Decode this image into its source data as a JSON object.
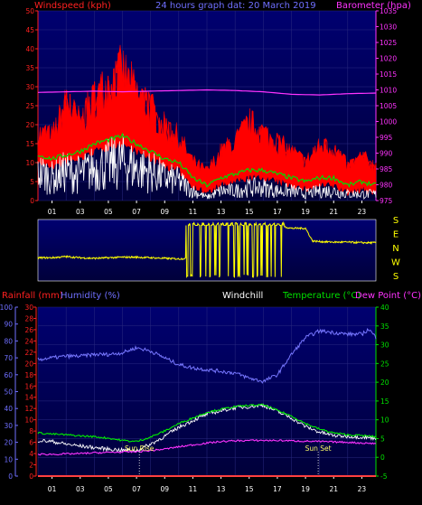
{
  "colors": {
    "background": "#000000",
    "plot_bg_top": "#000066",
    "plot_bg_bottom": "#00003f",
    "axis_red": "#ff2020",
    "axis_pink": "#ff33ff",
    "axis_blue": "#6f6fff",
    "axis_green": "#00e000",
    "axis_yellow": "#ffff00",
    "grid": "#2a2a80",
    "white": "#ffffff"
  },
  "chart_data": [
    {
      "id": "wind-barometer",
      "type": "line",
      "title": "24 hours graph dat: 20 March 2019",
      "left_axis_label": "Windspeed (kph)",
      "right_axis_label": "Barometer (hpa)",
      "left_ticks": [
        "50",
        "45",
        "40",
        "35",
        "30",
        "25",
        "20",
        "15",
        "10",
        "5",
        "0"
      ],
      "right_ticks": [
        "1035",
        "1030",
        "1025",
        "1020",
        "1015",
        "1010",
        "1005",
        "1000",
        "995",
        "990",
        "985",
        "980",
        "975"
      ],
      "x_ticks": [
        "01",
        "03",
        "05",
        "07",
        "09",
        "11",
        "13",
        "15",
        "17",
        "19",
        "21",
        "23"
      ],
      "ylim_left": [
        0,
        50
      ],
      "ylim_right": [
        975,
        1035
      ],
      "x_range_hours": [
        0,
        24
      ],
      "series": [
        {
          "id": "barometer",
          "color": "#ff33ff",
          "axis": "right",
          "x": [
            0,
            2,
            4,
            6,
            8,
            10,
            12,
            14,
            16,
            18,
            20,
            22,
            24
          ],
          "y": [
            1009.2,
            1009.4,
            1009.6,
            1009.4,
            1009.6,
            1009.8,
            1010.0,
            1009.8,
            1009.4,
            1008.6,
            1008.4,
            1008.8,
            1009.0
          ]
        },
        {
          "id": "gust",
          "color": "#ff0000",
          "axis": "left",
          "x": [
            0,
            1,
            2,
            3,
            4,
            5,
            6,
            7,
            8,
            9,
            10,
            11,
            12,
            13,
            14,
            15,
            16,
            17,
            18,
            19,
            20,
            21,
            22,
            23,
            24
          ],
          "y": [
            14,
            13,
            20,
            16,
            21,
            24,
            27,
            22,
            19,
            15,
            13,
            8,
            6,
            10,
            12,
            16,
            14,
            12,
            10,
            8,
            11,
            11,
            7,
            9,
            7
          ]
        },
        {
          "id": "average",
          "color": "#00dd00",
          "axis": "left",
          "x": [
            0,
            1,
            2,
            3,
            4,
            5,
            6,
            7,
            8,
            9,
            10,
            11,
            12,
            13,
            14,
            15,
            16,
            17,
            18,
            19,
            20,
            21,
            22,
            23,
            24
          ],
          "y": [
            12,
            11,
            12,
            13,
            15,
            16,
            17,
            15,
            13,
            11,
            10,
            6,
            4,
            6,
            7,
            8,
            8,
            7,
            6,
            5,
            6,
            6,
            4,
            5,
            4
          ]
        },
        {
          "id": "speed",
          "color": "#ffffff",
          "axis": "left",
          "x": [
            0,
            1,
            2,
            3,
            4,
            5,
            6,
            7,
            8,
            9,
            10,
            11,
            12,
            13,
            14,
            15,
            16,
            17,
            18,
            19,
            20,
            21,
            22,
            23,
            24
          ],
          "y": [
            9,
            7,
            9,
            8,
            10,
            11,
            12,
            10,
            9,
            7,
            6,
            3,
            1,
            3,
            3,
            4,
            4,
            3,
            3,
            2,
            3,
            3,
            2,
            2,
            2
          ]
        }
      ]
    },
    {
      "id": "wind-direction",
      "type": "line",
      "right_axis_label_letters": [
        "S",
        "E",
        "N",
        "W",
        "S"
      ],
      "x_range_hours": [
        0,
        24
      ],
      "series": [
        {
          "id": "direction",
          "color": "#ffff00",
          "x": [
            0,
            1,
            2,
            3,
            4,
            5,
            6,
            7,
            8,
            9,
            10,
            10.5,
            11,
            11.5,
            12,
            12.5,
            13,
            13.5,
            14,
            14.5,
            15,
            15.5,
            16,
            16.5,
            17,
            18,
            19,
            19.5,
            20,
            21,
            22,
            23,
            24
          ],
          "y": [
            0.37,
            0.37,
            0.39,
            0.37,
            0.36,
            0.37,
            0.38,
            0.38,
            0.37,
            0.36,
            0.35,
            0.36,
            0.96,
            0.05,
            0.96,
            0.04,
            0.95,
            0.05,
            0.96,
            0.05,
            0.96,
            0.05,
            0.95,
            0.05,
            0.93,
            0.88,
            0.88,
            0.66,
            0.65,
            0.64,
            0.64,
            0.63,
            0.63
          ]
        }
      ]
    },
    {
      "id": "temp-humidity",
      "type": "line",
      "label_rainfall": "Rainfall (mm)",
      "label_humidity": "Humidity (%)",
      "label_windchill": "Windchill",
      "label_temperature": "Temperature (°C)",
      "label_dewpoint": "Dew Point (°C)",
      "label_sunrise": "Sun Rise",
      "label_sunset": "Sun Set",
      "sunrise_hour": 7.2,
      "sunset_hour": 19.9,
      "humidity_ticks": [
        "100",
        "90",
        "80",
        "70",
        "60",
        "50",
        "40",
        "30",
        "20",
        "10",
        "0"
      ],
      "rain_ticks": [
        "30",
        "28",
        "26",
        "24",
        "22",
        "20",
        "18",
        "16",
        "14",
        "12",
        "10",
        "8",
        "6",
        "4",
        "2",
        "0"
      ],
      "temp_ticks": [
        "40",
        "35",
        "30",
        "25",
        "20",
        "15",
        "10",
        "5",
        "0",
        "-5"
      ],
      "x_ticks": [
        "01",
        "03",
        "05",
        "07",
        "09",
        "11",
        "13",
        "15",
        "17",
        "19",
        "21",
        "23"
      ],
      "ylim_humidity": [
        0,
        100
      ],
      "ylim_temperature": [
        -5,
        40
      ],
      "x_range_hours": [
        0,
        24
      ],
      "series": [
        {
          "id": "humidity",
          "color": "#7777ff",
          "axis": "humidity",
          "x": [
            0,
            1,
            2,
            3,
            4,
            5,
            6,
            7,
            8,
            9,
            10,
            11,
            12,
            13,
            14,
            15,
            16,
            17,
            18,
            19,
            20,
            21,
            22,
            23,
            23.5,
            24
          ],
          "y": [
            69,
            70,
            71,
            71,
            72,
            72,
            73,
            76,
            74,
            70,
            66,
            64,
            63,
            62,
            61,
            58,
            56,
            60,
            72,
            82,
            86,
            85,
            84,
            84,
            87,
            82
          ]
        },
        {
          "id": "temperature",
          "color": "#00ee00",
          "axis": "temperature",
          "x": [
            0,
            1,
            2,
            3,
            4,
            5,
            6,
            7,
            8,
            9,
            10,
            11,
            12,
            13,
            14,
            15,
            16,
            17,
            18,
            19,
            20,
            21,
            22,
            23,
            24
          ],
          "y": [
            6.5,
            6.2,
            6.0,
            5.7,
            5.5,
            5.1,
            4.5,
            4.2,
            5.4,
            7.0,
            9.0,
            10.5,
            12.0,
            12.8,
            13.5,
            13.8,
            14.0,
            12.5,
            11.0,
            9.0,
            7.5,
            6.5,
            6.0,
            5.8,
            5.5
          ]
        },
        {
          "id": "windchill",
          "color": "#ffffff",
          "axis": "temperature",
          "x": [
            0,
            1,
            2,
            3,
            4,
            5,
            6,
            7,
            8,
            9,
            10,
            11,
            12,
            13,
            14,
            15,
            16,
            17,
            18,
            19,
            20,
            21,
            22,
            23,
            24
          ],
          "y": [
            4.5,
            4.2,
            3.5,
            3.0,
            2.6,
            2.2,
            1.9,
            1.8,
            3.5,
            5.6,
            8.0,
            9.8,
            11.5,
            12.4,
            13.2,
            13.5,
            13.9,
            12.2,
            10.5,
            8.2,
            6.7,
            5.8,
            5.6,
            5.4,
            5.1
          ]
        },
        {
          "id": "dewpoint",
          "color": "#ff33ff",
          "axis": "temperature",
          "x": [
            0,
            1,
            2,
            3,
            4,
            5,
            6,
            7,
            8,
            9,
            10,
            11,
            12,
            13,
            14,
            15,
            16,
            17,
            18,
            19,
            20,
            21,
            22,
            23,
            24
          ],
          "y": [
            0.8,
            0.8,
            0.9,
            1.0,
            1.2,
            1.3,
            1.4,
            1.5,
            1.8,
            2.2,
            2.8,
            3.3,
            3.8,
            4.2,
            4.4,
            4.5,
            4.5,
            4.5,
            4.4,
            4.3,
            4.2,
            4.1,
            4.0,
            3.8,
            3.7
          ]
        },
        {
          "id": "rainfall",
          "color": "#ff4040",
          "axis": "humidity",
          "x": [
            0,
            24
          ],
          "y": [
            0,
            0
          ]
        }
      ]
    }
  ]
}
